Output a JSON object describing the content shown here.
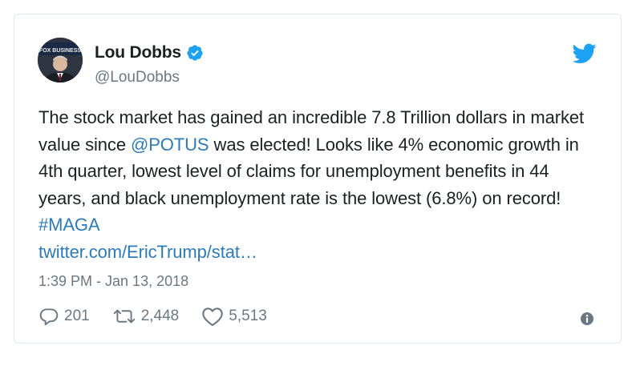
{
  "author": {
    "display_name": "Lou Dobbs",
    "handle": "@LouDobbs",
    "verified": true,
    "avatar_text": "FOX BUSINESS"
  },
  "tweet": {
    "text_part1": "The stock market has gained an incredible 7.8 Trillion dollars in market value since ",
    "mention": "@POTUS",
    "text_part2": " was elected! Looks like 4% economic growth in 4th quarter, lowest level of claims for unemployment benefits in 44 years, and black unemployment rate is the lowest (6.8%) on record! ",
    "hashtag": "#MAGA",
    "link": "twitter.com/EricTrump/stat…",
    "timestamp": "1:39 PM - Jan 13, 2018"
  },
  "actions": {
    "replies": "201",
    "retweets": "2,448",
    "likes": "5,513"
  },
  "colors": {
    "link": "#2b7bb9",
    "twitter_blue": "#1da1f2",
    "muted": "#697882",
    "text": "#1c2022",
    "border": "#e1e8ed"
  },
  "icons": {
    "brand": "twitter-bird-icon",
    "verified": "verified-badge-icon",
    "reply": "reply-icon",
    "retweet": "retweet-icon",
    "like": "heart-icon",
    "info": "info-icon"
  }
}
